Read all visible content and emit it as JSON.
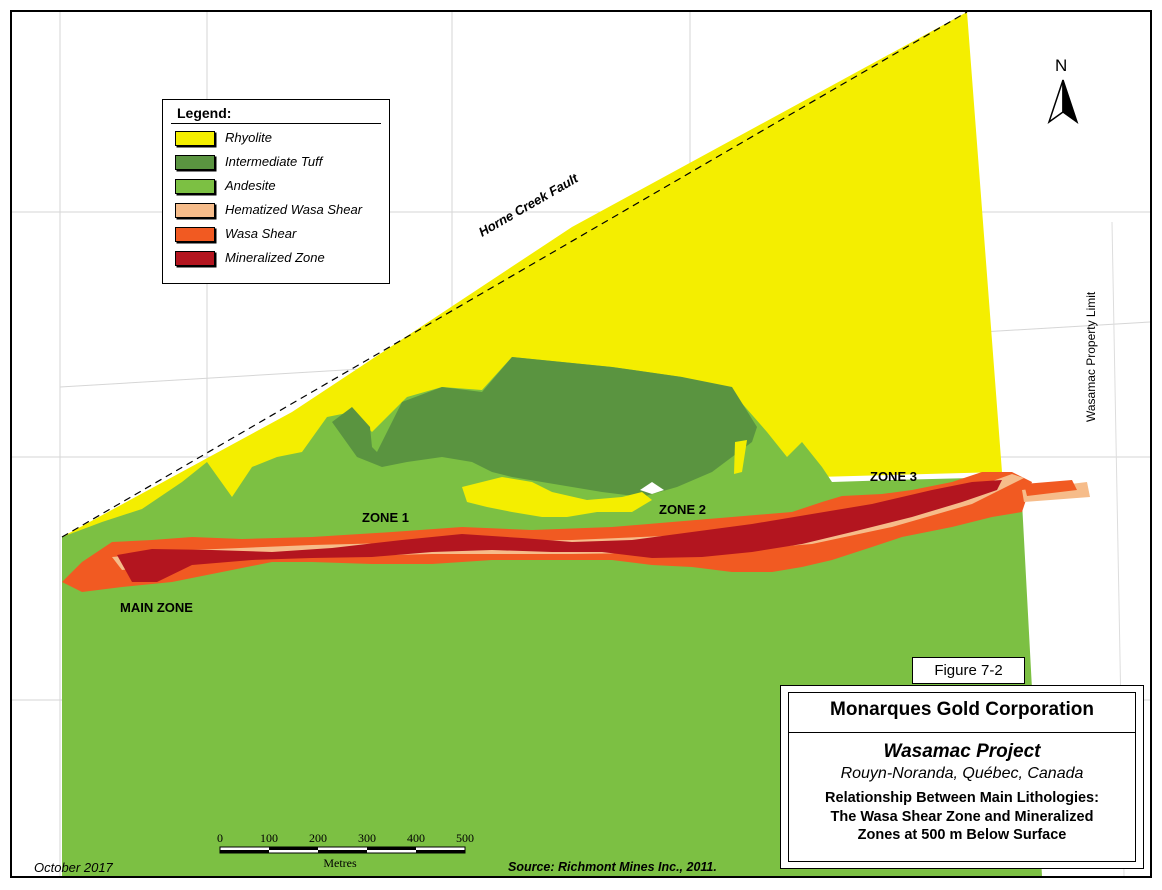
{
  "legend": {
    "title": "Legend:",
    "items": [
      {
        "label": "Rhyolite",
        "color": "#f4ee00"
      },
      {
        "label": "Intermediate Tuff",
        "color": "#5a9440"
      },
      {
        "label": "Andesite",
        "color": "#7cc043"
      },
      {
        "label": "Hematized Wasa Shear",
        "color": "#f6bc8a"
      },
      {
        "label": "Wasa Shear",
        "color": "#f15a22"
      },
      {
        "label": "Mineralized Zone",
        "color": "#b3151f"
      }
    ]
  },
  "map_labels": {
    "fault": "Horne Creek Fault",
    "property_limit": "Wasamac Property Limit",
    "zone1": "ZONE 1",
    "zone2": "ZONE 2",
    "zone3": "ZONE 3",
    "main_zone": "MAIN ZONE"
  },
  "north": "N",
  "scale": {
    "ticks": [
      "0",
      "100",
      "200",
      "300",
      "400",
      "500"
    ],
    "unit": "Metres"
  },
  "figure_label": "Figure 7-2",
  "title_block": {
    "company": "Monarques Gold Corporation",
    "project": "Wasamac Project",
    "location": "Rouyn-Noranda, Québec, Canada",
    "caption_lines": [
      "Relationship Between Main Lithologies:",
      "The Wasa Shear Zone and Mineralized",
      "Zones at 500 m Below Surface"
    ]
  },
  "footer": {
    "date": "October 2017",
    "source": "Source: Richmont Mines Inc., 2011."
  }
}
